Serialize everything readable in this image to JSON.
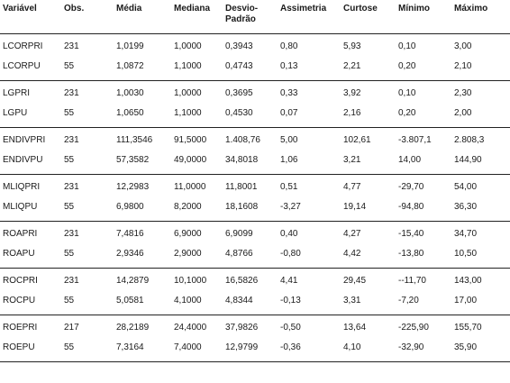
{
  "headers": [
    "Variável",
    "Obs.",
    "Média",
    "Mediana",
    "Desvio-Padrão",
    "Assimetria",
    "Curtose",
    "Mínimo",
    "Máximo"
  ],
  "groups": [
    [
      [
        "LCORPRI",
        "231",
        "1,0199",
        "1,0000",
        "0,3943",
        "0,80",
        "5,93",
        "0,10",
        "3,00"
      ],
      [
        "LCORPU",
        "55",
        "1,0872",
        "1,1000",
        "0,4743",
        "0,13",
        "2,21",
        "0,20",
        "2,10"
      ]
    ],
    [
      [
        "LGPRI",
        "231",
        "1,0030",
        "1,0000",
        "0,3695",
        "0,33",
        "3,92",
        "0,10",
        "2,30"
      ],
      [
        "LGPU",
        "55",
        "1,0650",
        "1,1000",
        "0,4530",
        "0,07",
        "2,16",
        "0,20",
        "2,00"
      ]
    ],
    [
      [
        "ENDIVPRI",
        "231",
        "111,3546",
        "91,5000",
        "1.408,76",
        "5,00",
        "102,61",
        "-3.807,1",
        "2.808,3"
      ],
      [
        "ENDIVPU",
        "55",
        "57,3582",
        "49,0000",
        "34,8018",
        "1,06",
        "3,21",
        "14,00",
        "144,90"
      ]
    ],
    [
      [
        "MLIQPRI",
        "231",
        "12,2983",
        "11,0000",
        "11,8001",
        "0,51",
        "4,77",
        "-29,70",
        "54,00"
      ],
      [
        "MLIQPU",
        "55",
        "6,9800",
        "8,2000",
        "18,1608",
        "-3,27",
        "19,14",
        "-94,80",
        "36,30"
      ]
    ],
    [
      [
        "ROAPRI",
        "231",
        "7,4816",
        "6,9000",
        "6,9099",
        "0,40",
        "4,27",
        "-15,40",
        "34,70"
      ],
      [
        "ROAPU",
        "55",
        "2,9346",
        "2,9000",
        "4,8766",
        "-0,80",
        "4,42",
        "-13,80",
        "10,50"
      ]
    ],
    [
      [
        "ROCPRI",
        "231",
        "14,2879",
        "10,1000",
        "16,5826",
        "4,41",
        "29,45",
        "--11,70",
        "143,00"
      ],
      [
        "ROCPU",
        "55",
        "5,0581",
        "4,1000",
        "4,8344",
        "-0,13",
        "3,31",
        "-7,20",
        "17,00"
      ]
    ],
    [
      [
        "ROEPRI",
        "217",
        "28,2189",
        "24,4000",
        "37,9826",
        "-0,50",
        "13,64",
        "-225,90",
        "155,70"
      ],
      [
        "ROEPU",
        "55",
        "7,3164",
        "7,4000",
        "12,9799",
        "-0,36",
        "4,10",
        "-32,90",
        "35,90"
      ]
    ]
  ]
}
